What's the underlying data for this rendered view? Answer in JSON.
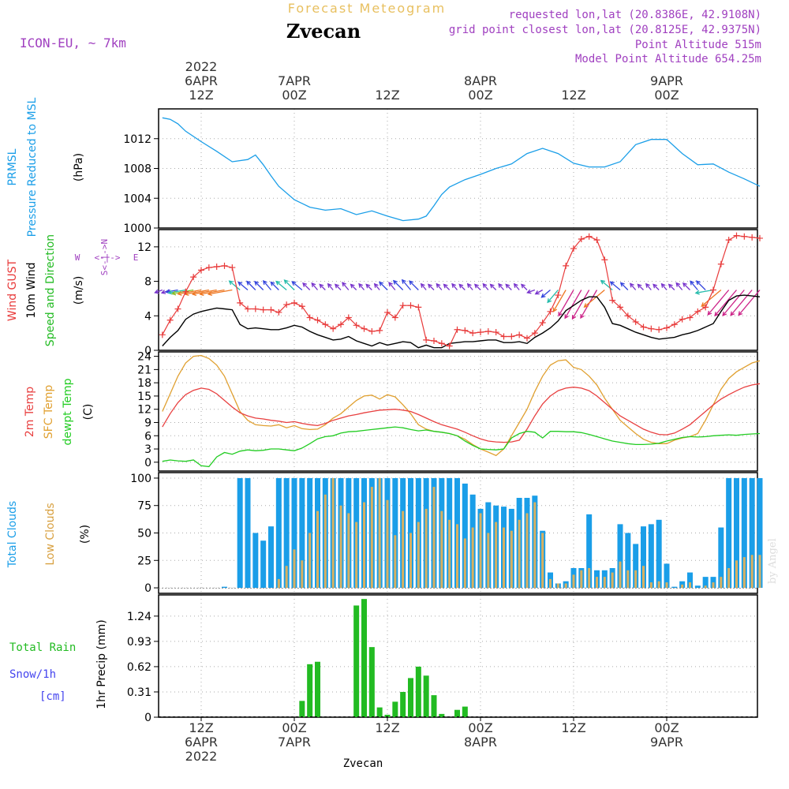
{
  "header": {
    "chart_kind": "Forecast Meteogram",
    "location": "Zvecan",
    "model": "ICON-EU, ~ 7km",
    "requested": "requested lon,lat (20.8386E, 42.9108N)",
    "grid_point": "grid point closest lon,lat (20.8125E, 42.9375N)",
    "point_altitude": "Point Altitude 515m",
    "model_altitude": "Model Point Altitude 654.25m",
    "watermark": "by Angel",
    "bottom_label": "Zvecan"
  },
  "colors": {
    "pressure": "#1a9ee8",
    "gust": "#e83a3a",
    "wind": "#000000",
    "direction": "#22bb22",
    "temp2m": "#e84040",
    "sfc_temp": "#e0a030",
    "dewpt": "#22cc22",
    "total_clouds": "#1a9ee8",
    "low_clouds": "#d8b060",
    "rain": "#22bb22",
    "snow": "#4444ee",
    "header_purple": "#a040c0",
    "title_gold": "#e8c060",
    "compass": "#a040c0"
  },
  "time_axis": {
    "top": [
      {
        "t": 0,
        "lines": [
          "2022",
          "6APR",
          "12Z"
        ]
      },
      {
        "t": 12,
        "lines": [
          "7APR",
          "00Z"
        ]
      },
      {
        "t": 24,
        "lines": [
          "12Z"
        ]
      },
      {
        "t": 36,
        "lines": [
          "8APR",
          "00Z"
        ]
      },
      {
        "t": 48,
        "lines": [
          "12Z"
        ]
      },
      {
        "t": 60,
        "lines": [
          "9APR",
          "00Z"
        ]
      }
    ],
    "bottom": [
      {
        "t": 0,
        "lines": [
          "12Z",
          "6APR",
          "2022"
        ]
      },
      {
        "t": 12,
        "lines": [
          "00Z",
          "7APR"
        ]
      },
      {
        "t": 24,
        "lines": [
          "12Z"
        ]
      },
      {
        "t": 36,
        "lines": [
          "00Z",
          "8APR"
        ]
      },
      {
        "t": 48,
        "lines": [
          "12Z"
        ]
      },
      {
        "t": 60,
        "lines": [
          "00Z",
          "9APR"
        ]
      }
    ]
  },
  "chart_data": [
    {
      "type": "line",
      "panel": "pressure",
      "ylabel_lines": [
        "PRMSL",
        "Pressure Reduced to MSL"
      ],
      "unit": "(hPa)",
      "ylim": [
        1000,
        1016
      ],
      "yticks": [
        1000,
        1004,
        1008,
        1012
      ],
      "x_unit": "hours since 6APR 12Z",
      "x": [
        -5,
        -4,
        -3,
        -2,
        0,
        2,
        4,
        6,
        7,
        8,
        9,
        10,
        12,
        14,
        16,
        18,
        20,
        22,
        24,
        26,
        28,
        29,
        30,
        31,
        32,
        34,
        36,
        38,
        40,
        42,
        44,
        46,
        48,
        50,
        52,
        54,
        56,
        58,
        60,
        62,
        64,
        66,
        68,
        70,
        72
      ],
      "values": [
        1014.8,
        1014.6,
        1014.0,
        1013.0,
        1011.6,
        1010.3,
        1008.9,
        1009.2,
        1009.8,
        1008.5,
        1007.0,
        1005.6,
        1003.8,
        1002.8,
        1002.4,
        1002.6,
        1001.8,
        1002.3,
        1001.6,
        1001.0,
        1001.2,
        1001.6,
        1003.0,
        1004.5,
        1005.5,
        1006.5,
        1007.2,
        1008.0,
        1008.6,
        1010.0,
        1010.7,
        1010.0,
        1008.7,
        1008.2,
        1008.2,
        1008.9,
        1011.2,
        1011.9,
        1011.9,
        1010.0,
        1008.5,
        1008.6,
        1007.5,
        1006.6,
        1005.6
      ]
    },
    {
      "type": "line",
      "panel": "wind",
      "ylabel_lines": [
        "Wind GUST",
        "10m Wind",
        "Speed and Direction"
      ],
      "unit": "(m/s)",
      "compass": [
        "N",
        "W <- | -> E",
        "S"
      ],
      "ylim": [
        0,
        14
      ],
      "yticks": [
        0,
        4,
        8,
        12
      ],
      "x": [
        -5,
        -4,
        -3,
        -2,
        -1,
        0,
        1,
        2,
        3,
        4,
        5,
        6,
        7,
        8,
        9,
        10,
        11,
        12,
        13,
        14,
        15,
        16,
        17,
        18,
        19,
        20,
        21,
        22,
        23,
        24,
        25,
        26,
        27,
        28,
        29,
        30,
        31,
        32,
        33,
        34,
        35,
        36,
        37,
        38,
        39,
        40,
        41,
        42,
        43,
        44,
        45,
        46,
        47,
        48,
        49,
        50,
        51,
        52,
        53,
        54,
        55,
        56,
        57,
        58,
        59,
        60,
        61,
        62,
        63,
        64,
        65,
        66,
        67,
        68,
        69,
        70,
        71,
        72
      ],
      "series": [
        {
          "name": "Wind GUST",
          "values": [
            1.8,
            3.5,
            4.8,
            6.8,
            8.5,
            9.3,
            9.6,
            9.7,
            9.8,
            9.6,
            5.5,
            4.8,
            4.8,
            4.7,
            4.7,
            4.4,
            5.3,
            5.5,
            5.1,
            3.8,
            3.5,
            3.0,
            2.5,
            3.0,
            3.8,
            2.9,
            2.5,
            2.2,
            2.3,
            4.4,
            3.8,
            5.2,
            5.2,
            5.0,
            1.2,
            1.1,
            0.8,
            0.5,
            2.4,
            2.3,
            2.0,
            2.1,
            2.2,
            2.1,
            1.6,
            1.6,
            1.8,
            1.4,
            2.0,
            3.2,
            4.5,
            6.4,
            9.8,
            11.8,
            12.9,
            13.2,
            12.8,
            10.5,
            5.8,
            5.0,
            4.0,
            3.3,
            2.7,
            2.5,
            2.4,
            2.6,
            3.0,
            3.6,
            3.8,
            4.5,
            5.0,
            7.0,
            10.0,
            12.8,
            13.3,
            13.2,
            13.1,
            13.0
          ]
        },
        {
          "name": "10m Wind",
          "values": [
            0.5,
            1.5,
            2.3,
            3.6,
            4.2,
            4.5,
            4.7,
            4.9,
            4.8,
            4.7,
            3.0,
            2.5,
            2.6,
            2.5,
            2.4,
            2.4,
            2.6,
            2.9,
            2.7,
            2.2,
            1.8,
            1.5,
            1.2,
            1.3,
            1.6,
            1.1,
            0.8,
            0.5,
            0.9,
            0.6,
            0.8,
            1.0,
            0.9,
            0.3,
            0.6,
            0.3,
            0.3,
            0.8,
            0.9,
            1.0,
            1.0,
            1.1,
            1.2,
            1.2,
            0.9,
            0.9,
            1.0,
            0.8,
            1.5,
            2.0,
            2.6,
            3.4,
            4.6,
            5.2,
            5.8,
            6.2,
            6.2,
            5.0,
            3.1,
            2.9,
            2.5,
            2.1,
            1.8,
            1.5,
            1.3,
            1.4,
            1.5,
            1.8,
            2.0,
            2.3,
            2.7,
            3.1,
            4.5,
            5.8,
            6.3,
            6.4,
            6.3,
            6.2
          ]
        }
      ],
      "arrows_base_value": 7,
      "arrow_dir_deg": [
        250,
        250,
        260,
        260,
        260,
        260,
        260,
        260,
        260,
        260,
        310,
        310,
        315,
        315,
        320,
        315,
        310,
        315,
        310,
        315,
        320,
        315,
        320,
        315,
        320,
        315,
        320,
        315,
        320,
        315,
        320,
        315,
        320,
        315,
        320,
        315,
        320,
        315,
        320,
        315,
        320,
        315,
        320,
        315,
        320,
        315,
        320,
        315,
        250,
        240,
        230,
        220,
        210,
        210,
        210,
        210,
        210,
        230,
        310,
        310,
        315,
        320,
        315,
        320,
        315,
        320,
        315,
        320,
        315,
        320,
        315,
        260,
        230,
        220,
        220,
        220,
        220,
        220
      ],
      "arrow_dir_unit": "degrees clockwise from N the wind blows towards"
    },
    {
      "type": "line",
      "panel": "temperature",
      "ylabel_lines": [
        "2m Temp",
        "SFC Temp",
        "dewpt Temp"
      ],
      "unit": "(C)",
      "ylim": [
        -2,
        25
      ],
      "yticks": [
        0,
        3,
        6,
        9,
        12,
        15,
        18,
        21,
        24
      ],
      "x": [
        -5,
        -4,
        -3,
        -2,
        -1,
        0,
        1,
        2,
        3,
        4,
        5,
        6,
        7,
        8,
        9,
        10,
        11,
        12,
        13,
        14,
        15,
        16,
        17,
        18,
        19,
        20,
        21,
        22,
        23,
        24,
        25,
        26,
        27,
        28,
        29,
        30,
        31,
        32,
        33,
        34,
        35,
        36,
        37,
        38,
        39,
        40,
        41,
        42,
        43,
        44,
        45,
        46,
        47,
        48,
        49,
        50,
        51,
        52,
        53,
        54,
        55,
        56,
        57,
        58,
        59,
        60,
        61,
        62,
        63,
        64,
        65,
        66,
        67,
        68,
        69,
        70,
        71,
        72
      ],
      "series": [
        {
          "name": "2m Temp",
          "values": [
            8.0,
            11.0,
            13.5,
            15.3,
            16.3,
            16.8,
            16.5,
            15.5,
            14.0,
            12.5,
            11.2,
            10.5,
            10.0,
            9.8,
            9.5,
            9.3,
            9.0,
            9.2,
            8.8,
            8.5,
            8.3,
            8.8,
            9.5,
            10.0,
            10.5,
            10.8,
            11.2,
            11.5,
            11.8,
            11.9,
            12.0,
            11.8,
            11.5,
            10.8,
            10.0,
            9.2,
            8.5,
            8.0,
            7.5,
            6.8,
            6.0,
            5.3,
            4.8,
            4.6,
            4.5,
            4.6,
            5.0,
            7.5,
            10.5,
            13.2,
            15.0,
            16.2,
            16.8,
            17.0,
            16.8,
            16.2,
            15.0,
            13.5,
            12.0,
            10.5,
            9.5,
            8.5,
            7.5,
            6.8,
            6.3,
            6.2,
            6.6,
            7.5,
            8.5,
            10.0,
            11.5,
            13.0,
            14.3,
            15.3,
            16.2,
            17.0,
            17.5,
            17.8
          ]
        },
        {
          "name": "SFC Temp",
          "values": [
            11.5,
            15.5,
            19.5,
            22.5,
            24.0,
            24.2,
            23.5,
            22.0,
            19.5,
            15.5,
            11.5,
            9.5,
            8.5,
            8.3,
            8.2,
            8.5,
            7.8,
            8.3,
            7.6,
            7.4,
            7.5,
            8.5,
            10.0,
            11.0,
            12.5,
            14.0,
            15.0,
            15.2,
            14.3,
            15.3,
            14.8,
            13.0,
            11.0,
            8.5,
            7.5,
            7.0,
            6.8,
            6.5,
            6.0,
            5.2,
            4.0,
            3.0,
            2.3,
            1.5,
            3.0,
            6.0,
            9.0,
            12.0,
            16.0,
            19.5,
            22.0,
            23.0,
            23.2,
            21.5,
            21.0,
            19.5,
            17.5,
            14.5,
            12.0,
            9.5,
            8.0,
            6.5,
            5.2,
            4.5,
            4.2,
            4.2,
            5.0,
            5.5,
            5.8,
            6.5,
            9.5,
            13.0,
            16.5,
            19.0,
            20.5,
            21.5,
            22.5,
            23.0
          ]
        },
        {
          "name": "dewpt Temp",
          "values": [
            0.2,
            0.5,
            0.3,
            0.2,
            0.5,
            -0.8,
            -1.0,
            1.2,
            2.2,
            1.8,
            2.5,
            2.8,
            2.6,
            2.7,
            3.0,
            3.0,
            2.8,
            2.6,
            3.2,
            4.2,
            5.3,
            5.8,
            6.0,
            6.6,
            6.9,
            7.0,
            7.2,
            7.4,
            7.6,
            7.8,
            8.0,
            7.8,
            7.4,
            7.1,
            7.3,
            7.0,
            6.8,
            6.5,
            6.0,
            4.8,
            3.8,
            3.0,
            2.9,
            2.8,
            3.0,
            5.5,
            6.5,
            7.0,
            6.8,
            5.5,
            7.0,
            7.0,
            6.9,
            6.9,
            6.7,
            6.3,
            5.8,
            5.3,
            4.8,
            4.5,
            4.2,
            4.0,
            4.0,
            4.1,
            4.3,
            4.8,
            5.2,
            5.6,
            5.8,
            5.7,
            5.8,
            6.0,
            6.1,
            6.2,
            6.1,
            6.3,
            6.4,
            6.5
          ]
        }
      ]
    },
    {
      "type": "bar",
      "panel": "clouds",
      "ylabel_lines": [
        "Total Clouds",
        "Low Clouds"
      ],
      "unit": "(%)",
      "ylim": [
        -5,
        105
      ],
      "yticks": [
        0,
        25,
        50,
        75,
        100
      ],
      "x": [
        -5,
        -4,
        -3,
        -2,
        -1,
        0,
        1,
        2,
        3,
        4,
        5,
        6,
        7,
        8,
        9,
        10,
        11,
        12,
        13,
        14,
        15,
        16,
        17,
        18,
        19,
        20,
        21,
        22,
        23,
        24,
        25,
        26,
        27,
        28,
        29,
        30,
        31,
        32,
        33,
        34,
        35,
        36,
        37,
        38,
        39,
        40,
        41,
        42,
        43,
        44,
        45,
        46,
        47,
        48,
        49,
        50,
        51,
        52,
        53,
        54,
        55,
        56,
        57,
        58,
        59,
        60,
        61,
        62,
        63,
        64,
        65,
        66,
        67,
        68,
        69,
        70,
        71,
        72
      ],
      "series": [
        {
          "name": "Total Clouds",
          "values": [
            0,
            0,
            0,
            0,
            0,
            0,
            0,
            0,
            1,
            0,
            100,
            100,
            50,
            43,
            56,
            100,
            100,
            100,
            100,
            100,
            100,
            100,
            100,
            100,
            100,
            100,
            100,
            100,
            100,
            100,
            100,
            100,
            100,
            100,
            100,
            100,
            100,
            100,
            100,
            95,
            85,
            72,
            78,
            75,
            74,
            72,
            82,
            82,
            84,
            52,
            14,
            4,
            6,
            18,
            18,
            67,
            16,
            16,
            18,
            58,
            50,
            40,
            56,
            58,
            62,
            22,
            1,
            6,
            14,
            2,
            10,
            10,
            55,
            100,
            100,
            100,
            100,
            100
          ]
        },
        {
          "name": "Low Clouds",
          "values": [
            0,
            0,
            0,
            0,
            0,
            0,
            0,
            0,
            0,
            0,
            0,
            0,
            0,
            0,
            0,
            8,
            20,
            35,
            25,
            50,
            70,
            85,
            100,
            75,
            68,
            60,
            78,
            92,
            100,
            80,
            48,
            70,
            50,
            60,
            72,
            92,
            70,
            62,
            58,
            45,
            55,
            68,
            50,
            60,
            55,
            52,
            62,
            68,
            78,
            50,
            8,
            4,
            4,
            12,
            16,
            18,
            10,
            10,
            14,
            24,
            16,
            16,
            20,
            5,
            6,
            5,
            0,
            3,
            5,
            0,
            2,
            5,
            10,
            18,
            25,
            28,
            30,
            30
          ]
        }
      ]
    },
    {
      "type": "bar",
      "panel": "precip",
      "ylabel_lines": [
        "Total Rain",
        "Snow/1h",
        "[cm]"
      ],
      "axis_label": "1hr Precip (mm)",
      "ylim": [
        0,
        1.5
      ],
      "yticks": [
        0,
        0.31,
        0.62,
        0.93,
        1.24
      ],
      "x": [
        13,
        14,
        15,
        16,
        17,
        18,
        19,
        20,
        21,
        22,
        23,
        24,
        25,
        26,
        27,
        28,
        29,
        30,
        31,
        32,
        33,
        34
      ],
      "series": [
        {
          "name": "Total Rain",
          "values": [
            0.2,
            0.65,
            0.68,
            0,
            0,
            0,
            0,
            1.37,
            1.45,
            0.86,
            0.12,
            0.03,
            0.19,
            0.31,
            0.48,
            0.62,
            0.51,
            0.27,
            0.04,
            0,
            0.09,
            0.13
          ]
        }
      ]
    }
  ]
}
